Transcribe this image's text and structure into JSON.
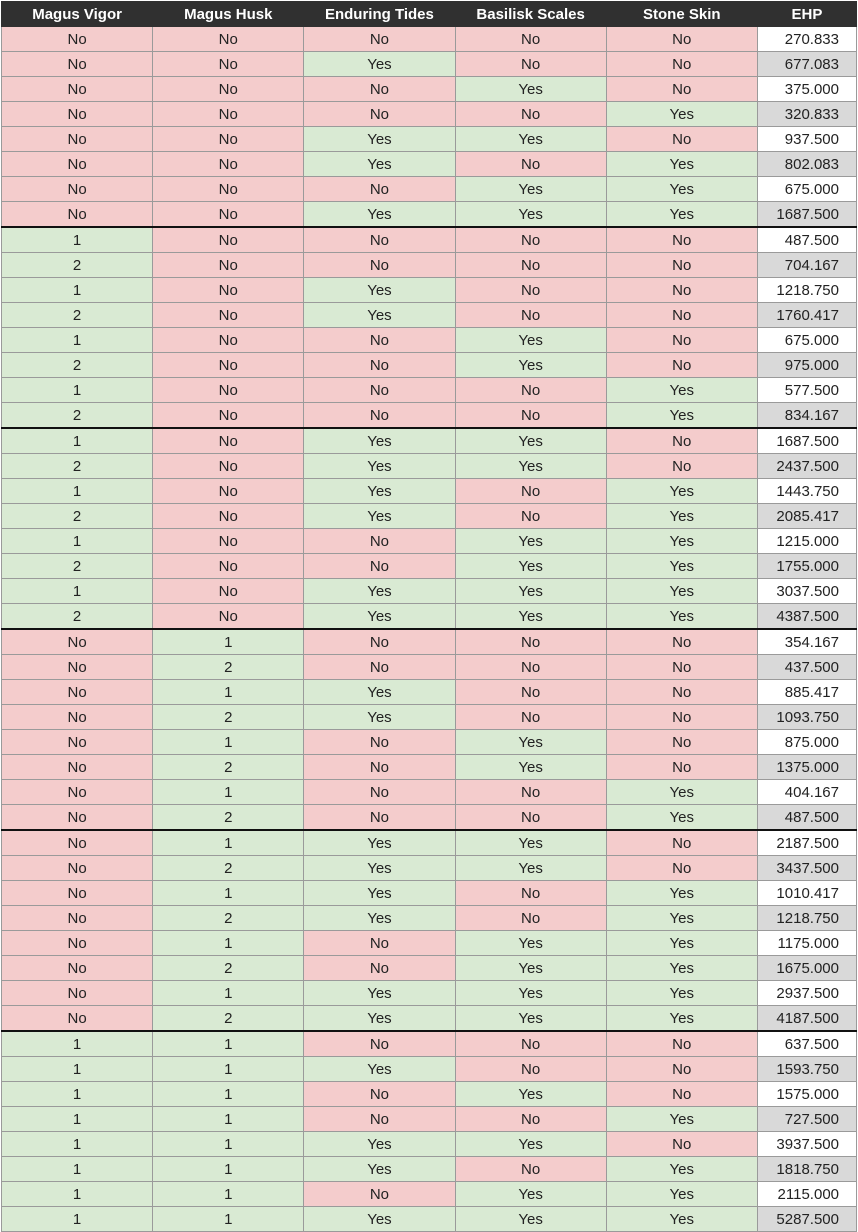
{
  "headers": [
    "Magus Vigor",
    "Magus Husk",
    "Enduring Tides",
    "Basilisk Scales",
    "Stone Skin",
    "EHP"
  ],
  "rows": [
    [
      "No",
      "No",
      "No",
      "No",
      "No",
      "270.833"
    ],
    [
      "No",
      "No",
      "Yes",
      "No",
      "No",
      "677.083"
    ],
    [
      "No",
      "No",
      "No",
      "Yes",
      "No",
      "375.000"
    ],
    [
      "No",
      "No",
      "No",
      "No",
      "Yes",
      "320.833"
    ],
    [
      "No",
      "No",
      "Yes",
      "Yes",
      "No",
      "937.500"
    ],
    [
      "No",
      "No",
      "Yes",
      "No",
      "Yes",
      "802.083"
    ],
    [
      "No",
      "No",
      "No",
      "Yes",
      "Yes",
      "675.000"
    ],
    [
      "No",
      "No",
      "Yes",
      "Yes",
      "Yes",
      "1687.500"
    ],
    [
      "1",
      "No",
      "No",
      "No",
      "No",
      "487.500"
    ],
    [
      "2",
      "No",
      "No",
      "No",
      "No",
      "704.167"
    ],
    [
      "1",
      "No",
      "Yes",
      "No",
      "No",
      "1218.750"
    ],
    [
      "2",
      "No",
      "Yes",
      "No",
      "No",
      "1760.417"
    ],
    [
      "1",
      "No",
      "No",
      "Yes",
      "No",
      "675.000"
    ],
    [
      "2",
      "No",
      "No",
      "Yes",
      "No",
      "975.000"
    ],
    [
      "1",
      "No",
      "No",
      "No",
      "Yes",
      "577.500"
    ],
    [
      "2",
      "No",
      "No",
      "No",
      "Yes",
      "834.167"
    ],
    [
      "1",
      "No",
      "Yes",
      "Yes",
      "No",
      "1687.500"
    ],
    [
      "2",
      "No",
      "Yes",
      "Yes",
      "No",
      "2437.500"
    ],
    [
      "1",
      "No",
      "Yes",
      "No",
      "Yes",
      "1443.750"
    ],
    [
      "2",
      "No",
      "Yes",
      "No",
      "Yes",
      "2085.417"
    ],
    [
      "1",
      "No",
      "No",
      "Yes",
      "Yes",
      "1215.000"
    ],
    [
      "2",
      "No",
      "No",
      "Yes",
      "Yes",
      "1755.000"
    ],
    [
      "1",
      "No",
      "Yes",
      "Yes",
      "Yes",
      "3037.500"
    ],
    [
      "2",
      "No",
      "Yes",
      "Yes",
      "Yes",
      "4387.500"
    ],
    [
      "No",
      "1",
      "No",
      "No",
      "No",
      "354.167"
    ],
    [
      "No",
      "2",
      "No",
      "No",
      "No",
      "437.500"
    ],
    [
      "No",
      "1",
      "Yes",
      "No",
      "No",
      "885.417"
    ],
    [
      "No",
      "2",
      "Yes",
      "No",
      "No",
      "1093.750"
    ],
    [
      "No",
      "1",
      "No",
      "Yes",
      "No",
      "875.000"
    ],
    [
      "No",
      "2",
      "No",
      "Yes",
      "No",
      "1375.000"
    ],
    [
      "No",
      "1",
      "No",
      "No",
      "Yes",
      "404.167"
    ],
    [
      "No",
      "2",
      "No",
      "No",
      "Yes",
      "487.500"
    ],
    [
      "No",
      "1",
      "Yes",
      "Yes",
      "No",
      "2187.500"
    ],
    [
      "No",
      "2",
      "Yes",
      "Yes",
      "No",
      "3437.500"
    ],
    [
      "No",
      "1",
      "Yes",
      "No",
      "Yes",
      "1010.417"
    ],
    [
      "No",
      "2",
      "Yes",
      "No",
      "Yes",
      "1218.750"
    ],
    [
      "No",
      "1",
      "No",
      "Yes",
      "Yes",
      "1175.000"
    ],
    [
      "No",
      "2",
      "No",
      "Yes",
      "Yes",
      "1675.000"
    ],
    [
      "No",
      "1",
      "Yes",
      "Yes",
      "Yes",
      "2937.500"
    ],
    [
      "No",
      "2",
      "Yes",
      "Yes",
      "Yes",
      "4187.500"
    ],
    [
      "1",
      "1",
      "No",
      "No",
      "No",
      "637.500"
    ],
    [
      "1",
      "1",
      "Yes",
      "No",
      "No",
      "1593.750"
    ],
    [
      "1",
      "1",
      "No",
      "Yes",
      "No",
      "1575.000"
    ],
    [
      "1",
      "1",
      "No",
      "No",
      "Yes",
      "727.500"
    ],
    [
      "1",
      "1",
      "Yes",
      "Yes",
      "No",
      "3937.500"
    ],
    [
      "1",
      "1",
      "Yes",
      "No",
      "Yes",
      "1818.750"
    ],
    [
      "1",
      "1",
      "No",
      "Yes",
      "Yes",
      "2115.000"
    ],
    [
      "1",
      "1",
      "Yes",
      "Yes",
      "Yes",
      "5287.500"
    ]
  ],
  "colors": {
    "header_bg": "#303030",
    "no_bg": "#f4cccc",
    "yes_bg": "#d9ead3",
    "ehp_alt_bg": "#d9d9d9"
  }
}
